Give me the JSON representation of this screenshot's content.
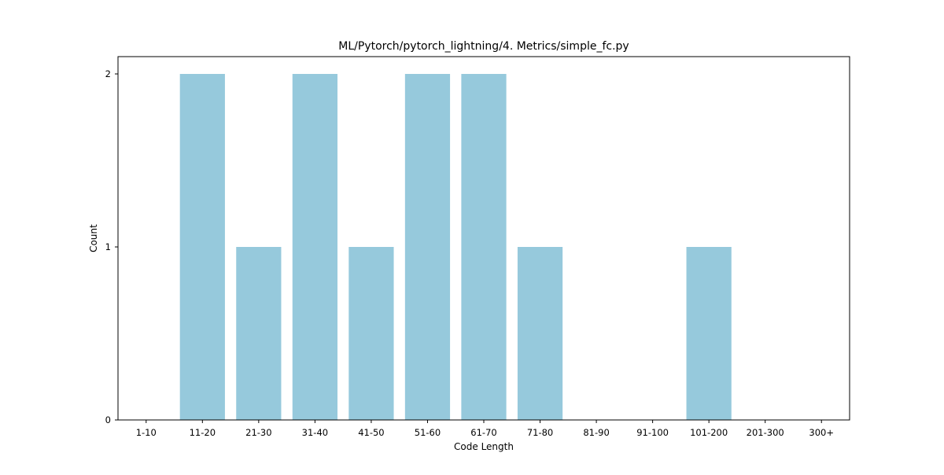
{
  "chart_data": {
    "type": "bar",
    "title": "ML/Pytorch/pytorch_lightning/4. Metrics/simple_fc.py",
    "xlabel": "Code Length",
    "ylabel": "Count",
    "categories": [
      "1-10",
      "11-20",
      "21-30",
      "31-40",
      "41-50",
      "51-60",
      "61-70",
      "71-80",
      "81-90",
      "91-100",
      "101-200",
      "201-300",
      "300+"
    ],
    "values": [
      0,
      2,
      1,
      2,
      1,
      2,
      2,
      1,
      0,
      0,
      1,
      0,
      0
    ],
    "yticks": [
      "0",
      "1",
      "2"
    ],
    "ylim": [
      0,
      2.1
    ],
    "bar_color": "#96c9dc",
    "grid": false,
    "legend": "none"
  }
}
